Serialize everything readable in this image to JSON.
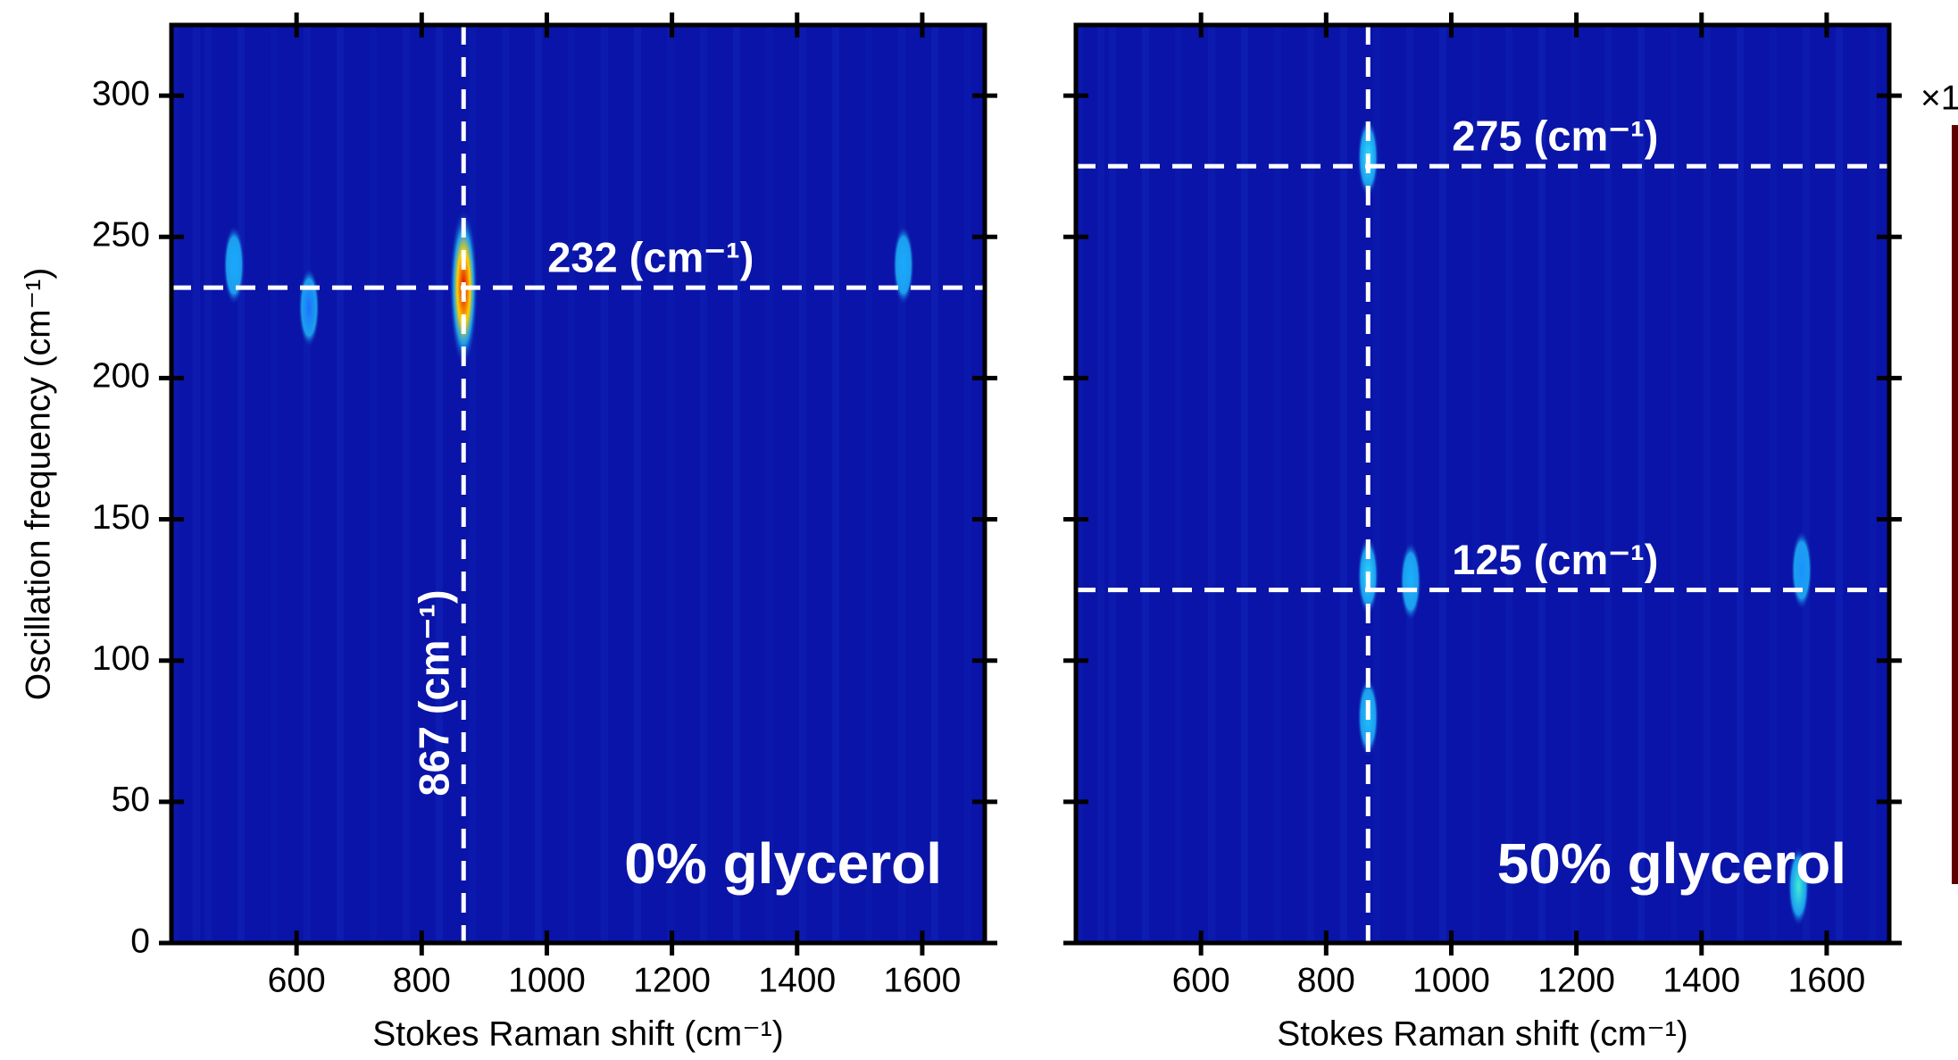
{
  "chart_data": [
    {
      "type": "heatmap",
      "xlabel": "Stokes Raman shift (cm⁻¹)",
      "ylabel": "Oscillation frequency (cm⁻¹)",
      "xlim": [
        400,
        1700
      ],
      "ylim": [
        0,
        325
      ],
      "xticks": [
        600,
        800,
        1000,
        1200,
        1400,
        1600
      ],
      "yticks": [
        0,
        50,
        100,
        150,
        200,
        250,
        300
      ],
      "show_ytick_labels": true,
      "panel_label": "0% glycerol",
      "vlines": [
        {
          "value": 867,
          "label": "867 (cm⁻¹)"
        }
      ],
      "hlines": [
        {
          "value": 232,
          "label": "232 (cm⁻¹)"
        }
      ],
      "peaks": {
        "x": [
          867,
          500,
          1570,
          620
        ],
        "y": [
          232,
          240,
          240,
          225
        ],
        "color": [
          "#e00000",
          "#1aa8ff",
          "#1aa8ff",
          "#1a70ff"
        ]
      }
    },
    {
      "type": "heatmap",
      "xlabel": "Stokes Raman shift (cm⁻¹)",
      "xlim": [
        400,
        1700
      ],
      "ylim": [
        0,
        325
      ],
      "xticks": [
        600,
        800,
        1000,
        1200,
        1400,
        1600
      ],
      "yticks": [
        0,
        50,
        100,
        150,
        200,
        250,
        300
      ],
      "show_ytick_labels": false,
      "panel_label": "50% glycerol",
      "colorbar_label": "×1",
      "vlines": [
        {
          "value": 867
        }
      ],
      "hlines": [
        {
          "value": 275,
          "label": "275 (cm⁻¹)"
        },
        {
          "value": 125,
          "label": "125 (cm⁻¹)"
        }
      ],
      "peaks": {
        "x": [
          867,
          867,
          935,
          867,
          1555,
          1560
        ],
        "y": [
          278,
          130,
          128,
          80,
          20,
          132
        ],
        "color": [
          "#30e0ff",
          "#30d8ff",
          "#1ab0ff",
          "#20c0ff",
          "#40f0d0",
          "#1a90ff"
        ]
      }
    }
  ]
}
